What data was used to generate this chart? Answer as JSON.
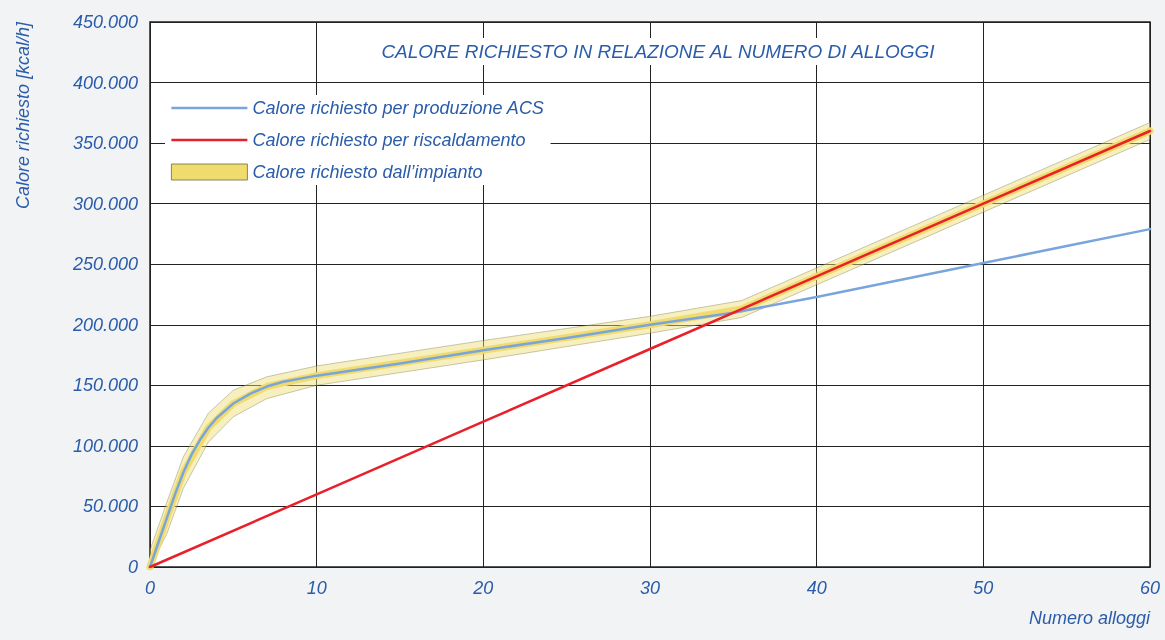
{
  "chart_data": {
    "type": "line",
    "title": "CALORE RICHIESTO IN RELAZIONE AL NUMERO DI ALLOGGI",
    "xlabel": "Numero alloggi",
    "ylabel": "Calore richiesto [kcal/h]",
    "xlim": [
      0,
      60
    ],
    "xticks": [
      0,
      10,
      20,
      30,
      40,
      50,
      60
    ],
    "ylim": [
      0,
      450000
    ],
    "yticks": [
      {
        "value": 0,
        "label": "0"
      },
      {
        "value": 50000,
        "label": "50.000"
      },
      {
        "value": 100000,
        "label": "100.000"
      },
      {
        "value": 150000,
        "label": "150.000"
      },
      {
        "value": 200000,
        "label": "200.000"
      },
      {
        "value": 250000,
        "label": "250.000"
      },
      {
        "value": 300000,
        "label": "300.000"
      },
      {
        "value": 350000,
        "label": "350.000"
      },
      {
        "value": 400000,
        "label": "400.000"
      },
      {
        "value": 450000,
        "label": "450.000"
      }
    ],
    "grid": true,
    "legend": "top left",
    "marker": "none",
    "line_style": "solid",
    "series": [
      {
        "name": "Calore richiesto per produzione ACS",
        "color": "#7aa5dc",
        "x": [
          0,
          0.5,
          1,
          1.5,
          2,
          2.5,
          3,
          3.5,
          4,
          5,
          6,
          7,
          8,
          10,
          15,
          20,
          25,
          30,
          35,
          40,
          45,
          50,
          55,
          60
        ],
        "values": [
          0,
          20000,
          40000,
          60000,
          78000,
          93000,
          105000,
          115000,
          123000,
          135000,
          143000,
          149000,
          153000,
          158000,
          168000,
          179000,
          189000,
          200000,
          210000,
          223000,
          237000,
          251000,
          265000,
          279000
        ]
      },
      {
        "name": "Calore richiesto per riscaldamento",
        "color": "#e8202a",
        "x": [
          0,
          10,
          20,
          30,
          40,
          50,
          60
        ],
        "values": [
          0,
          60000,
          120000,
          180000,
          240000,
          300000,
          360000
        ]
      },
      {
        "name": "Calore richiesto dall’impianto",
        "type": "line",
        "color": "#f0dc6e",
        "x": [
          0,
          1,
          2,
          3.5,
          5,
          7,
          10,
          20,
          30,
          35.5,
          40,
          50,
          60
        ],
        "values": [
          0,
          40000,
          78000,
          115000,
          135000,
          149000,
          158000,
          179000,
          200000,
          213000,
          240000,
          300000,
          360000
        ],
        "lower": [
          0,
          27000,
          65000,
          103000,
          124000,
          139000,
          150000,
          171000,
          193000,
          206000,
          233000,
          293000,
          353000
        ],
        "upper": [
          14000,
          53000,
          91000,
          127000,
          146000,
          157000,
          166000,
          187000,
          207000,
          220000,
          247000,
          307000,
          367000
        ]
      }
    ]
  }
}
